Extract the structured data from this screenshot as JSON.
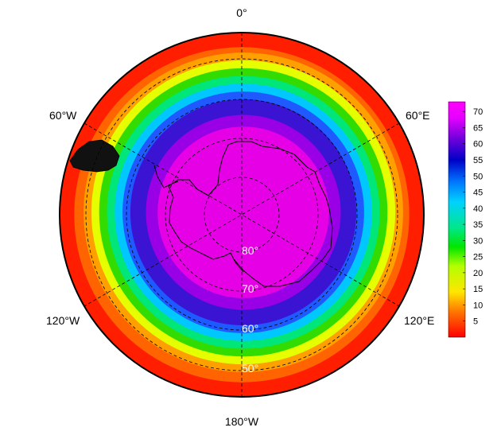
{
  "map": {
    "projection": "south-polar-stereographic",
    "lon_labels": {
      "top": "0°",
      "upper_right": "60°E",
      "lower_right": "120°E",
      "bottom": "180°W",
      "lower_left": "120°W",
      "upper_left": "60°W"
    },
    "lat_labels": [
      "80°",
      "70°",
      "60°",
      "50°"
    ],
    "field_bands": [
      {
        "from_lat": -90,
        "to_lat": -68,
        "value": 68,
        "color": "#e600e6"
      },
      {
        "from_lat": -68,
        "to_lat": -65,
        "value": 64,
        "color": "#9900e6"
      },
      {
        "from_lat": -65,
        "to_lat": -61,
        "value": 58,
        "color": "#3a14d2"
      },
      {
        "from_lat": -61,
        "to_lat": -59,
        "value": 52,
        "color": "#1e5aff"
      },
      {
        "from_lat": -59,
        "to_lat": -57,
        "value": 46,
        "color": "#00c8ff"
      },
      {
        "from_lat": -57,
        "to_lat": -55,
        "value": 36,
        "color": "#00e678"
      },
      {
        "from_lat": -55,
        "to_lat": -53,
        "value": 28,
        "color": "#32dc00"
      },
      {
        "from_lat": -53,
        "to_lat": -51,
        "value": 20,
        "color": "#e6ff00"
      },
      {
        "from_lat": -51,
        "to_lat": -49,
        "value": 12,
        "color": "#ffa000"
      },
      {
        "from_lat": -49,
        "to_lat": -47,
        "value": 8,
        "color": "#ff6400"
      },
      {
        "from_lat": -47,
        "to_lat": -40,
        "value": 3,
        "color": "#ff1e00"
      }
    ]
  },
  "colorbar": {
    "ticks": [
      "70",
      "65",
      "60",
      "55",
      "50",
      "45",
      "40",
      "35",
      "30",
      "25",
      "20",
      "15",
      "10",
      "5"
    ],
    "stops": [
      {
        "value": 0,
        "color": "#ff0000"
      },
      {
        "value": 8,
        "color": "#ff7800"
      },
      {
        "value": 14,
        "color": "#ffe600"
      },
      {
        "value": 22,
        "color": "#b4ff00"
      },
      {
        "value": 28,
        "color": "#00e600"
      },
      {
        "value": 34,
        "color": "#00e68c"
      },
      {
        "value": 42,
        "color": "#00d2ff"
      },
      {
        "value": 48,
        "color": "#0078ff"
      },
      {
        "value": 55,
        "color": "#0000c8"
      },
      {
        "value": 62,
        "color": "#7800dc"
      },
      {
        "value": 68,
        "color": "#e600ff"
      },
      {
        "value": 73,
        "color": "#ff00ff"
      }
    ],
    "min": 0,
    "max": 73
  }
}
